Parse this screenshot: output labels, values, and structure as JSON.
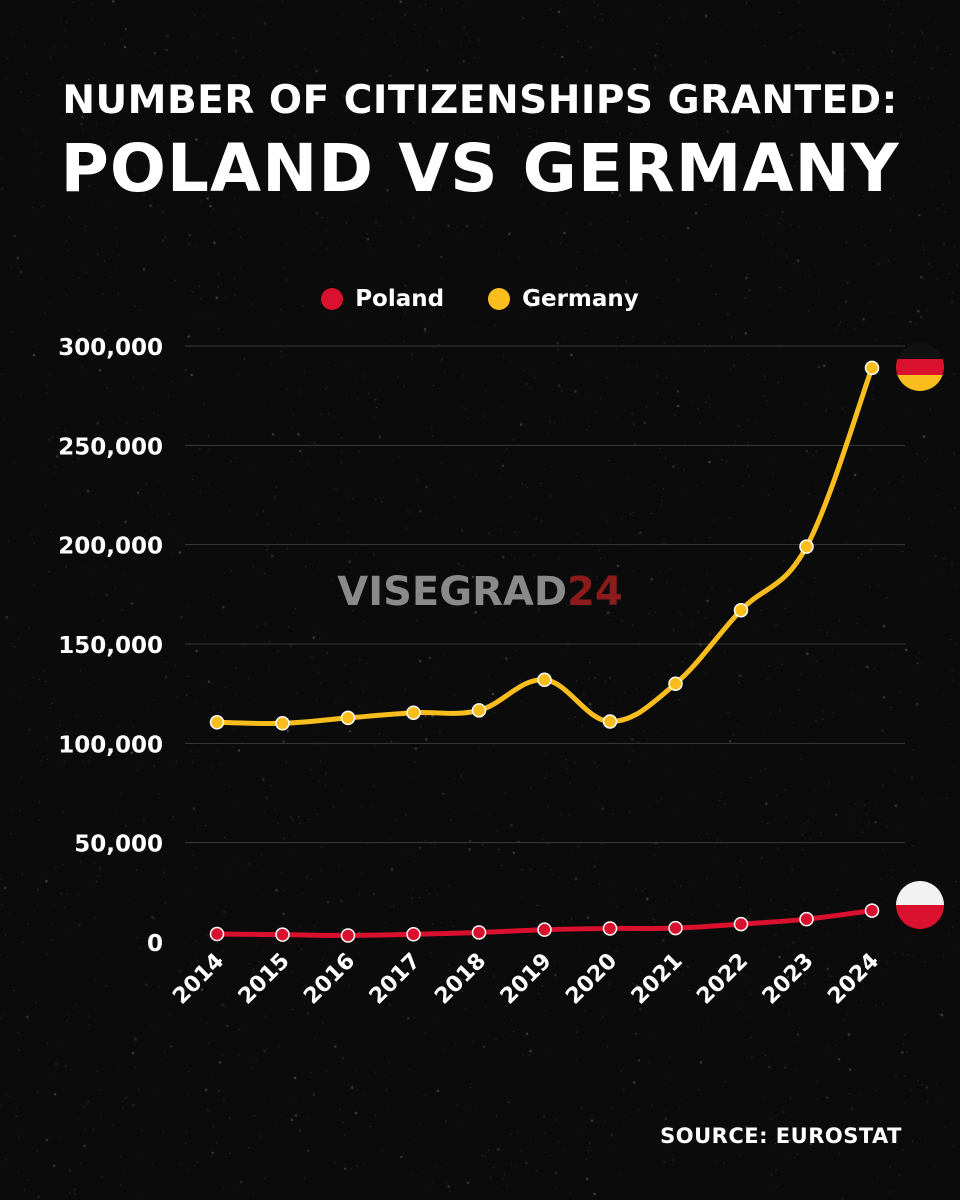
{
  "title": {
    "line1": "NUMBER OF CITIZENSHIPS GRANTED:",
    "line2": "POLAND VS GERMANY"
  },
  "watermark": {
    "part1": "VISEGRAD",
    "part2": "24"
  },
  "source": "SOURCE: EUROSTAT",
  "colors": {
    "background": "#0b0b0b",
    "poland": "#d9102e",
    "germany": "#f9bd1e",
    "grid": "#3a3a3a",
    "watermark_gray": "#8a8a8a",
    "watermark_red": "#8c1c1c"
  },
  "icons": {
    "germany_flag": "germany-flag-icon",
    "poland_flag": "poland-flag-icon"
  },
  "chart_data": {
    "type": "line",
    "title": "NUMBER OF CITIZENSHIPS GRANTED: POLAND VS GERMANY",
    "xlabel": "",
    "ylabel": "",
    "categories": [
      "2014",
      "2015",
      "2016",
      "2017",
      "2018",
      "2019",
      "2020",
      "2021",
      "2022",
      "2023",
      "2024"
    ],
    "yticks": [
      0,
      50000,
      100000,
      150000,
      200000,
      250000,
      300000
    ],
    "ytick_labels": [
      "0",
      "50,000",
      "100,000",
      "150,000",
      "200,000",
      "250,000",
      "300,000"
    ],
    "ylim": [
      0,
      300000
    ],
    "grid": true,
    "legend": "top-center",
    "series": [
      {
        "name": "Poland",
        "color": "#d9102e",
        "values": [
          4000,
          3700,
          3300,
          3900,
          4800,
          6200,
          6800,
          7000,
          9000,
          11500,
          15800
        ]
      },
      {
        "name": "Germany",
        "color": "#f9bd1e",
        "values": [
          110600,
          110100,
          112800,
          115400,
          116600,
          132000,
          111000,
          130000,
          167000,
          199000,
          289000
        ]
      }
    ]
  }
}
